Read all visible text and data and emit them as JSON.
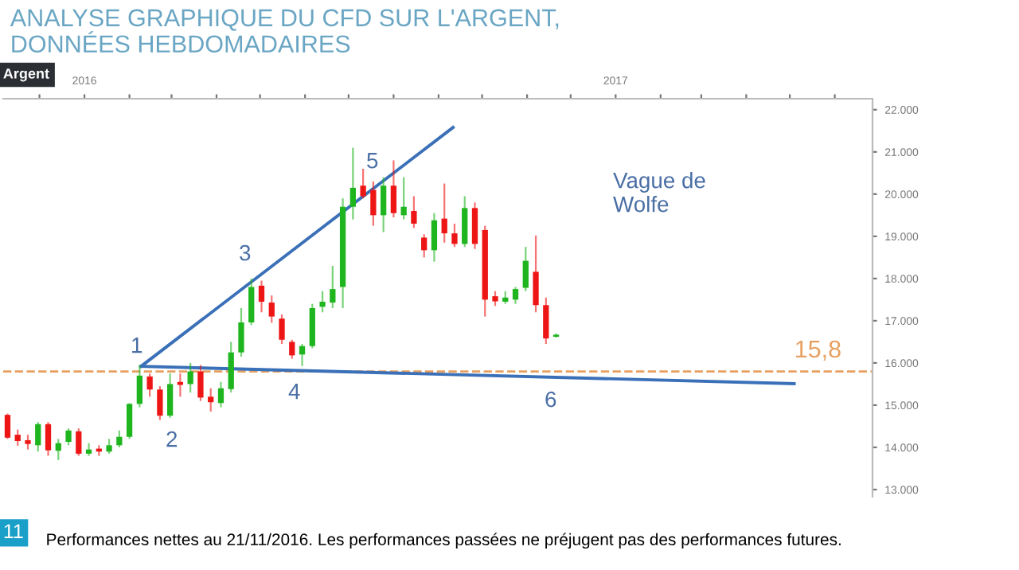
{
  "chart_data": {
    "type": "candlestick",
    "title": "ANALYSE GRAPHIQUE DU CFD SUR L'ARGENT,\nDONNÉES HEBDOMADAIRES",
    "subtitle": "Argent",
    "x": [
      "2015-11-09",
      "2015-11-16",
      "2015-11-23",
      "2015-11-30",
      "2015-12-07",
      "2015-12-14",
      "2015-12-21",
      "2015-12-28",
      "2016-01-04",
      "2016-01-11",
      "2016-01-18",
      "2016-01-25",
      "2016-02-01",
      "2016-02-08",
      "2016-02-15",
      "2016-02-22",
      "2016-02-29",
      "2016-03-07",
      "2016-03-14",
      "2016-03-21",
      "2016-03-28",
      "2016-04-04",
      "2016-04-11",
      "2016-04-18",
      "2016-04-25",
      "2016-05-02",
      "2016-05-09",
      "2016-05-16",
      "2016-05-23",
      "2016-05-30",
      "2016-06-06",
      "2016-06-13",
      "2016-06-20",
      "2016-06-27",
      "2016-07-04",
      "2016-07-11",
      "2016-07-18",
      "2016-07-25",
      "2016-08-01",
      "2016-08-08",
      "2016-08-15",
      "2016-08-22",
      "2016-08-29",
      "2016-09-05",
      "2016-09-12",
      "2016-09-19",
      "2016-09-26",
      "2016-10-03",
      "2016-10-10",
      "2016-10-17",
      "2016-10-24",
      "2016-10-31",
      "2016-11-07",
      "2016-11-14",
      "2016-11-21"
    ],
    "ohlc": [
      [
        14.77,
        14.8,
        14.2,
        14.23
      ],
      [
        14.3,
        14.42,
        14.04,
        14.15
      ],
      [
        14.17,
        14.3,
        13.95,
        14.08
      ],
      [
        14.05,
        14.6,
        13.9,
        14.55
      ],
      [
        14.55,
        14.6,
        13.8,
        13.93
      ],
      [
        13.92,
        14.2,
        13.7,
        14.1
      ],
      [
        14.13,
        14.45,
        14.05,
        14.4
      ],
      [
        14.38,
        14.45,
        13.8,
        13.85
      ],
      [
        13.85,
        14.1,
        13.8,
        13.95
      ],
      [
        13.97,
        14.05,
        13.8,
        13.9
      ],
      [
        13.9,
        14.2,
        13.85,
        14.05
      ],
      [
        14.05,
        14.4,
        14.0,
        14.25
      ],
      [
        14.25,
        15.05,
        14.2,
        15.03
      ],
      [
        15.03,
        15.95,
        14.95,
        15.7
      ],
      [
        15.68,
        15.75,
        15.2,
        15.37
      ],
      [
        15.37,
        15.45,
        14.65,
        14.75
      ],
      [
        14.75,
        15.75,
        14.7,
        15.5
      ],
      [
        15.55,
        15.75,
        15.2,
        15.48
      ],
      [
        15.5,
        16.0,
        15.3,
        15.8
      ],
      [
        15.8,
        15.95,
        15.1,
        15.18
      ],
      [
        15.2,
        15.4,
        14.85,
        15.07
      ],
      [
        15.05,
        15.55,
        14.95,
        15.4
      ],
      [
        15.38,
        16.5,
        15.3,
        16.25
      ],
      [
        16.25,
        17.3,
        16.15,
        16.96
      ],
      [
        16.96,
        18.0,
        16.9,
        17.8
      ],
      [
        17.83,
        17.95,
        17.2,
        17.45
      ],
      [
        17.43,
        17.6,
        16.95,
        17.1
      ],
      [
        17.05,
        17.15,
        16.45,
        16.55
      ],
      [
        16.5,
        16.55,
        16.1,
        16.18
      ],
      [
        16.2,
        16.45,
        15.93,
        16.4
      ],
      [
        16.4,
        17.4,
        16.35,
        17.3
      ],
      [
        17.33,
        17.7,
        17.2,
        17.45
      ],
      [
        17.43,
        18.3,
        17.3,
        17.75
      ],
      [
        17.8,
        19.9,
        17.3,
        19.7
      ],
      [
        19.7,
        21.1,
        19.4,
        20.15
      ],
      [
        20.2,
        20.6,
        19.9,
        19.95
      ],
      [
        20.1,
        20.3,
        19.25,
        19.5
      ],
      [
        19.5,
        20.4,
        19.1,
        20.2
      ],
      [
        20.2,
        20.8,
        19.45,
        19.55
      ],
      [
        19.5,
        20.4,
        19.4,
        19.7
      ],
      [
        19.6,
        19.95,
        19.2,
        19.3
      ],
      [
        18.97,
        19.05,
        18.5,
        18.67
      ],
      [
        18.67,
        19.55,
        18.4,
        19.38
      ],
      [
        19.42,
        20.25,
        18.85,
        19.07
      ],
      [
        19.07,
        19.3,
        18.75,
        18.82
      ],
      [
        18.82,
        19.95,
        18.75,
        19.67
      ],
      [
        19.67,
        19.8,
        18.7,
        18.82
      ],
      [
        19.15,
        19.25,
        17.1,
        17.5
      ],
      [
        17.58,
        17.7,
        17.35,
        17.46
      ],
      [
        17.45,
        17.7,
        17.4,
        17.55
      ],
      [
        17.5,
        17.8,
        17.4,
        17.75
      ],
      [
        17.78,
        18.75,
        17.7,
        18.42
      ],
      [
        18.16,
        19.02,
        17.2,
        17.37
      ],
      [
        17.37,
        17.55,
        16.45,
        16.58
      ],
      [
        16.62,
        16.7,
        16.6,
        16.67
      ]
    ],
    "colors": [
      "#ee1515",
      "#ee1515",
      "#ee1515",
      "#1fb51f",
      "#ee1515",
      "#1fb51f",
      "#1fb51f",
      "#ee1515",
      "#1fb51f",
      "#ee1515",
      "#1fb51f",
      "#1fb51f",
      "#1fb51f",
      "#1fb51f",
      "#ee1515",
      "#ee1515",
      "#1fb51f",
      "#ee1515",
      "#1fb51f",
      "#ee1515",
      "#ee1515",
      "#1fb51f",
      "#1fb51f",
      "#1fb51f",
      "#1fb51f",
      "#ee1515",
      "#ee1515",
      "#ee1515",
      "#ee1515",
      "#1fb51f",
      "#1fb51f",
      "#1fb51f",
      "#1fb51f",
      "#1fb51f",
      "#1fb51f",
      "#ee1515",
      "#ee1515",
      "#1fb51f",
      "#ee1515",
      "#1fb51f",
      "#ee1515",
      "#ee1515",
      "#1fb51f",
      "#ee1515",
      "#ee1515",
      "#1fb51f",
      "#ee1515",
      "#ee1515",
      "#ee1515",
      "#1fb51f",
      "#1fb51f",
      "#1fb51f",
      "#ee1515",
      "#ee1515",
      "#1fb51f"
    ],
    "series": [
      {
        "type": "line",
        "color": "#3a70b8",
        "x": [
          "2016-02-09",
          "2016-09-11"
        ],
        "values": [
          15.92,
          21.58
        ]
      },
      {
        "type": "line",
        "color": "#3a70b8",
        "x": [
          "2016-02-09",
          "2017-05-04"
        ],
        "values": [
          15.92,
          15.51
        ]
      }
    ],
    "ref_lines": [
      {
        "axis": "y",
        "value": 15.8,
        "label": "15,8",
        "color": "#e8a060",
        "line_style": "dashed"
      }
    ],
    "annotations": [
      "1",
      "2",
      "3",
      "4",
      "5",
      "6",
      "Vague de\nWolfe",
      "11",
      "Performances nettes au 21/11/2016. Les performances passées ne préjugent pas des performances futures."
    ],
    "xlim": [
      "2015-11-06",
      "2017-06-27"
    ],
    "xticks": [
      {
        "value": "2015-12-01",
        "label": null
      },
      {
        "value": "2016-01-01",
        "label": "2016"
      },
      {
        "value": "2016-02-01",
        "label": null
      },
      {
        "value": "2016-03-01",
        "label": null
      },
      {
        "value": "2016-04-01",
        "label": null
      },
      {
        "value": "2016-05-01",
        "label": null
      },
      {
        "value": "2016-06-01",
        "label": null
      },
      {
        "value": "2016-07-01",
        "label": null
      },
      {
        "value": "2016-08-01",
        "label": null
      },
      {
        "value": "2016-09-01",
        "label": null
      },
      {
        "value": "2016-10-01",
        "label": null
      },
      {
        "value": "2016-11-01",
        "label": null
      },
      {
        "value": "2016-12-01",
        "label": null
      },
      {
        "value": "2017-01-01",
        "label": "2017"
      },
      {
        "value": "2017-02-01",
        "label": null
      },
      {
        "value": "2017-03-01",
        "label": null
      },
      {
        "value": "2017-04-01",
        "label": null
      },
      {
        "value": "2017-05-01",
        "label": null
      },
      {
        "value": "2017-06-01",
        "label": null
      }
    ],
    "ylim": [
      12.83,
      22.26
    ],
    "yticks": [
      {
        "value": 13,
        "label": "13.000"
      },
      {
        "value": 14,
        "label": "14.000"
      },
      {
        "value": 15,
        "label": "15.000"
      },
      {
        "value": 16,
        "label": "16.000"
      },
      {
        "value": 17,
        "label": "17.000"
      },
      {
        "value": 18,
        "label": "18.000"
      },
      {
        "value": 19,
        "label": "19.000"
      },
      {
        "value": 20,
        "label": "20.000"
      },
      {
        "value": 21,
        "label": "21.000"
      },
      {
        "value": 22,
        "label": "22.000"
      }
    ],
    "grid": false,
    "legend": false
  }
}
